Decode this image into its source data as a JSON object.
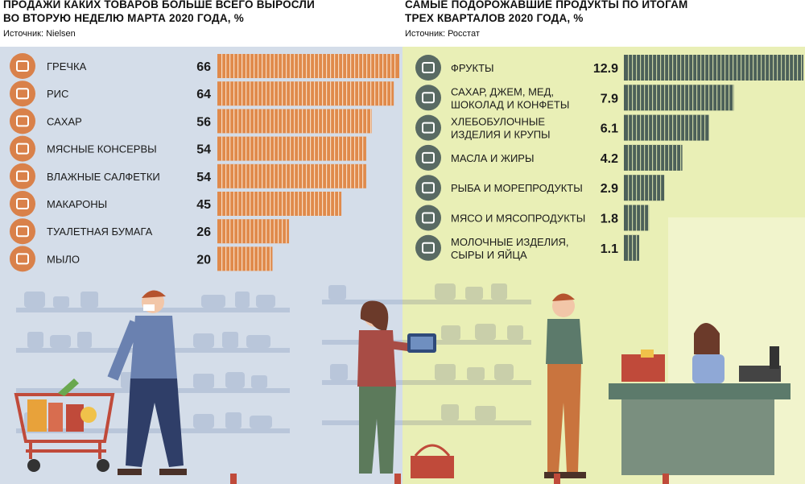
{
  "left": {
    "title": "ПРОДАЖИ КАКИХ ТОВАРОВ БОЛЬШЕ ВСЕГО ВЫРОСЛИ\nВО ВТОРУЮ НЕДЕЛЮ МАРТА 2020 ГОДА, %",
    "source": "Источник: Nielsen"
  },
  "right": {
    "title": "САМЫЕ ПОДОРОЖАВШИЕ ПРОДУКТЫ ПО ИТОГАМ\nТРЕХ КВАРТАЛОВ 2020 ГОДА, %",
    "source": "Источник: Росстат"
  },
  "colors": {
    "left_bg": "#d4dde9",
    "right_bg": "#e9efb6",
    "left_bar": "#e08a4b",
    "left_icon": "#d9814a",
    "right_bar": "#4c6059",
    "right_icon": "#596a63"
  },
  "chart_data": [
    {
      "type": "bar",
      "orientation": "horizontal",
      "categories": [
        "ГРЕЧКА",
        "РИС",
        "САХАР",
        "МЯСНЫЕ КОНСЕРВЫ",
        "ВЛАЖНЫЕ САЛФЕТКИ",
        "МАКАРОНЫ",
        "ТУАЛЕТНАЯ БУМАГА",
        "МЫЛО"
      ],
      "values": [
        66,
        64,
        56,
        54,
        54,
        45,
        26,
        20
      ],
      "value_labels": [
        "66",
        "64",
        "56",
        "54",
        "54",
        "45",
        "26",
        "20"
      ],
      "icons": [
        "buckwheat-icon",
        "rice-icon",
        "sugar-cube-icon",
        "canned-meat-icon",
        "wet-wipes-icon",
        "pasta-icon",
        "toilet-paper-icon",
        "soap-icon"
      ],
      "xlim": [
        0,
        66
      ],
      "grid": false
    },
    {
      "type": "bar",
      "orientation": "horizontal",
      "categories": [
        "ФРУКТЫ",
        "САХАР, ДЖЕМ, МЕД,\nШОКОЛАД И КОНФЕТЫ",
        "ХЛЕБОБУЛОЧНЫЕ\nИЗДЕЛИЯ И КРУПЫ",
        "МАСЛА И ЖИРЫ",
        "РЫБА И МОРЕПРОДУКТЫ",
        "МЯСО И МЯСОПРОДУКТЫ",
        "МОЛОЧНЫЕ ИЗДЕЛИЯ,\nСЫРЫ И ЯЙЦА"
      ],
      "values": [
        12.9,
        7.9,
        6.1,
        4.2,
        2.9,
        1.8,
        1.1
      ],
      "value_labels": [
        "12.9",
        "7.9",
        "6.1",
        "4.2",
        "2.9",
        "1.8",
        "1.1"
      ],
      "icons": [
        "fruit-icon",
        "sweets-icon",
        "bread-icon",
        "oil-icon",
        "fish-icon",
        "meat-icon",
        "milk-icon"
      ],
      "xlim": [
        0,
        12.9
      ],
      "grid": false
    }
  ]
}
